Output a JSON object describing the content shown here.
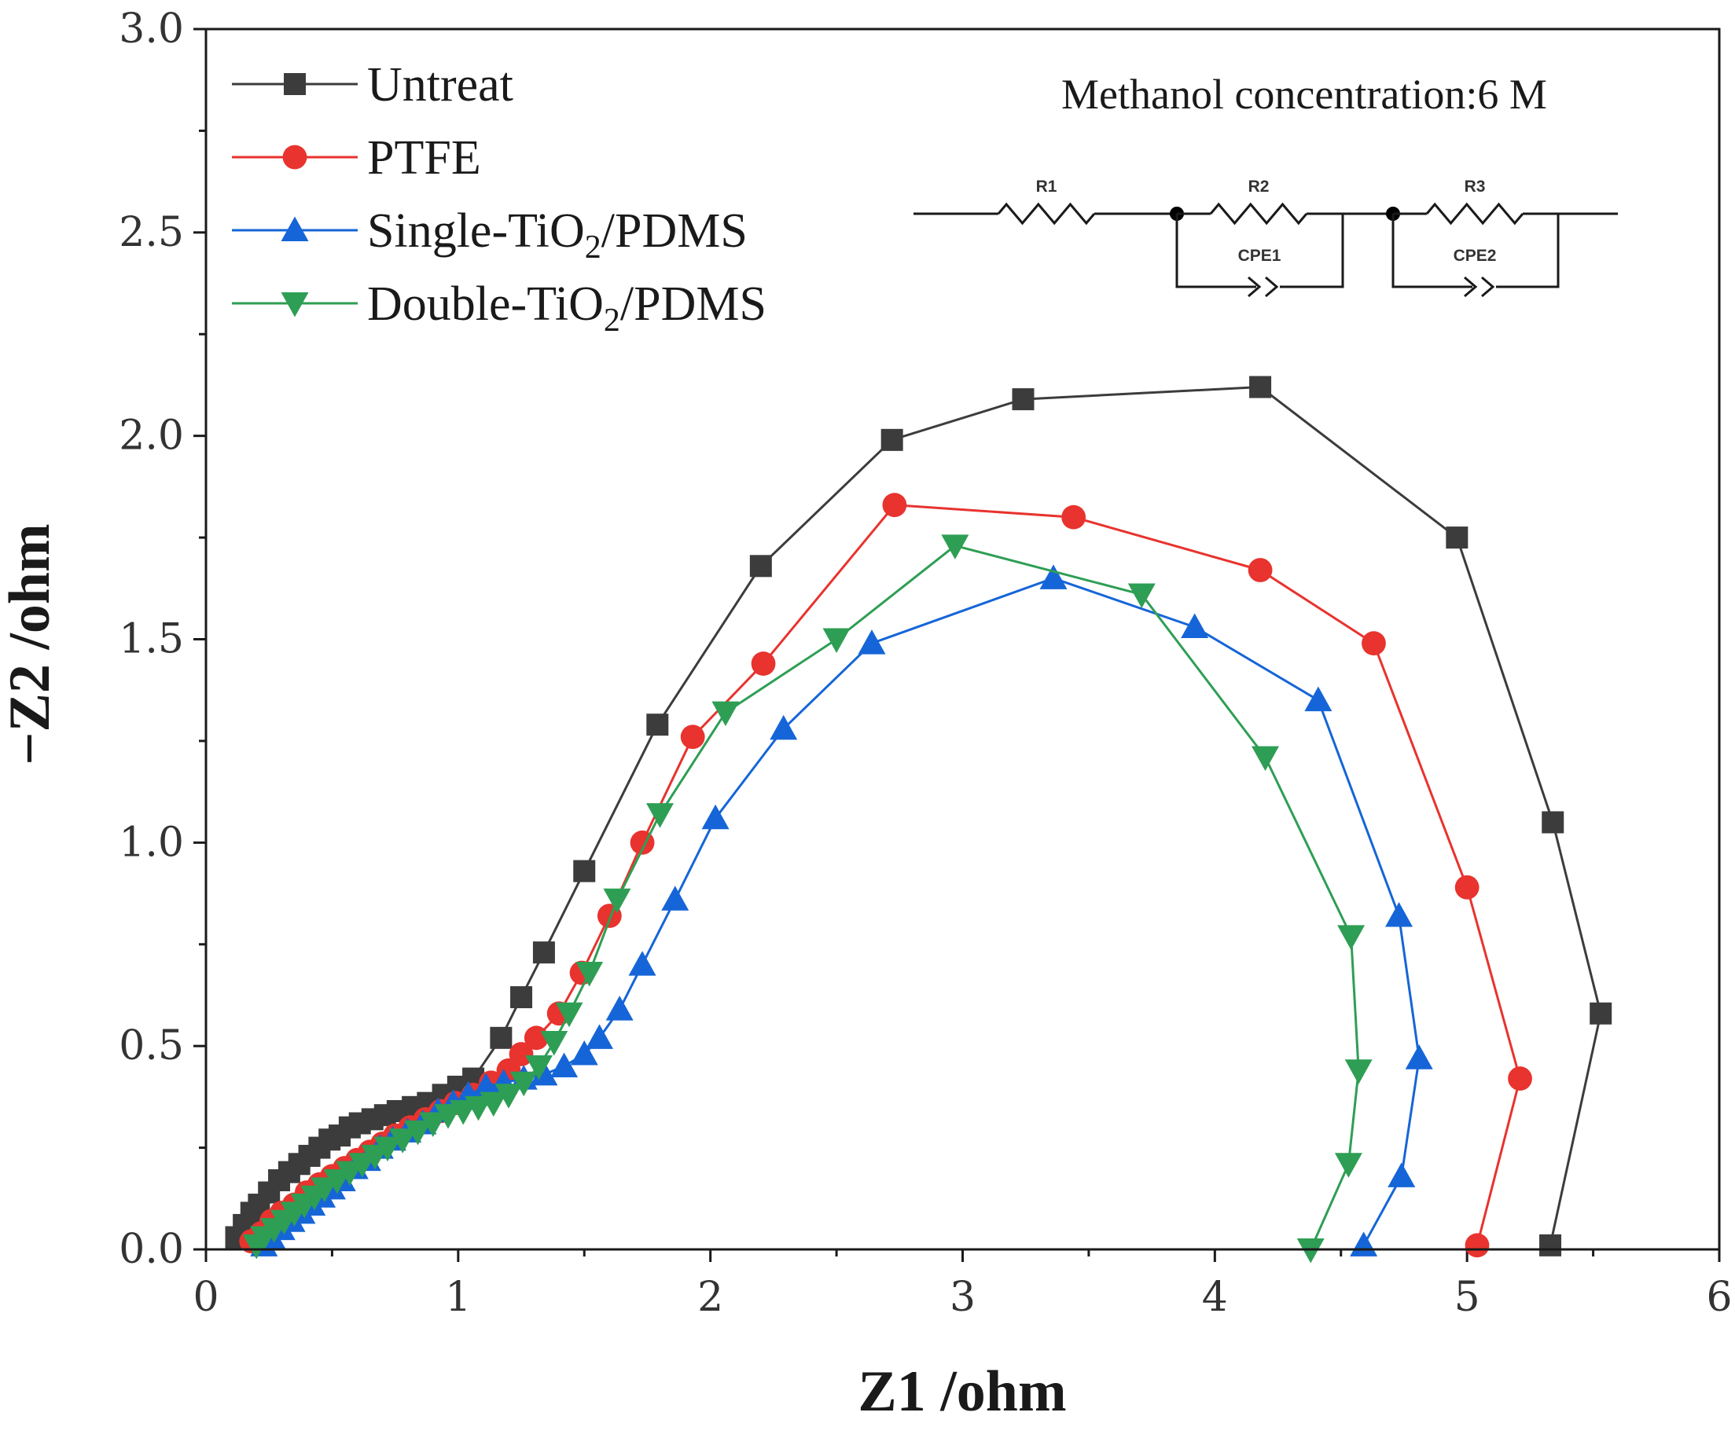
{
  "chart_data": {
    "type": "scatter",
    "mode": "lines+markers",
    "title": "",
    "xlabel": "Z1 /ohm",
    "ylabel": "−Z2 /ohm",
    "xlim": [
      0,
      6
    ],
    "ylim": [
      0,
      3.0
    ],
    "x_ticks": [
      "0",
      "1",
      "2",
      "3",
      "4",
      "5",
      "6"
    ],
    "y_ticks": [
      "0.0",
      "0.5",
      "1.0",
      "1.5",
      "2.0",
      "2.5",
      "3.0"
    ],
    "legend_position": "top-left",
    "annotation": "Methanol concentration:6 M",
    "circuit": {
      "resistors": [
        "R1",
        "R2",
        "R3"
      ],
      "cpes": [
        "CPE1",
        "CPE2"
      ]
    },
    "series": [
      {
        "name": "Untreat",
        "label_main": "Untreat",
        "label_sub": "",
        "label_tail": "",
        "color": "#3c3c3c",
        "marker": "square",
        "x": [
          0.12,
          0.15,
          0.18,
          0.21,
          0.25,
          0.29,
          0.33,
          0.37,
          0.41,
          0.45,
          0.49,
          0.53,
          0.57,
          0.61,
          0.66,
          0.71,
          0.76,
          0.82,
          0.88,
          0.94,
          1.0,
          1.06,
          1.17,
          1.25,
          1.34,
          1.5,
          1.79,
          2.2,
          2.72,
          3.24,
          4.18,
          4.96,
          5.34,
          5.53,
          5.33
        ],
        "y": [
          0.03,
          0.06,
          0.09,
          0.11,
          0.14,
          0.17,
          0.19,
          0.21,
          0.23,
          0.25,
          0.27,
          0.28,
          0.3,
          0.31,
          0.32,
          0.33,
          0.34,
          0.35,
          0.36,
          0.38,
          0.4,
          0.42,
          0.52,
          0.62,
          0.73,
          0.93,
          1.29,
          1.68,
          1.99,
          2.09,
          2.12,
          1.75,
          1.05,
          0.58,
          0.01
        ]
      },
      {
        "name": "PTFE",
        "label_main": "PTFE",
        "label_sub": "",
        "label_tail": "",
        "color": "#e8332e",
        "marker": "circle",
        "x": [
          0.18,
          0.22,
          0.26,
          0.3,
          0.35,
          0.4,
          0.45,
          0.5,
          0.55,
          0.6,
          0.65,
          0.7,
          0.75,
          0.81,
          0.87,
          0.93,
          0.99,
          1.06,
          1.13,
          1.2,
          1.25,
          1.31,
          1.4,
          1.49,
          1.6,
          1.73,
          1.93,
          2.21,
          2.73,
          3.44,
          4.18,
          4.63,
          5.0,
          5.21,
          5.04
        ],
        "y": [
          0.02,
          0.04,
          0.07,
          0.09,
          0.11,
          0.14,
          0.16,
          0.18,
          0.2,
          0.22,
          0.24,
          0.26,
          0.28,
          0.3,
          0.32,
          0.34,
          0.36,
          0.38,
          0.41,
          0.44,
          0.48,
          0.52,
          0.58,
          0.68,
          0.82,
          1.0,
          1.26,
          1.44,
          1.83,
          1.8,
          1.67,
          1.49,
          0.89,
          0.42,
          0.01
        ]
      },
      {
        "name": "Single-TiO2/PDMS",
        "label_main": "Single-TiO",
        "label_sub": "2",
        "label_tail": "/PDMS",
        "color": "#1565d8",
        "marker": "triangle-up",
        "x": [
          0.23,
          0.26,
          0.3,
          0.34,
          0.38,
          0.42,
          0.46,
          0.5,
          0.54,
          0.59,
          0.64,
          0.69,
          0.74,
          0.8,
          0.86,
          0.92,
          0.98,
          1.04,
          1.11,
          1.18,
          1.26,
          1.34,
          1.42,
          1.5,
          1.56,
          1.64,
          1.73,
          1.86,
          2.02,
          2.29,
          2.64,
          3.36,
          3.92,
          4.41,
          4.73,
          4.81,
          4.74,
          4.59
        ],
        "y": [
          0.01,
          0.03,
          0.05,
          0.07,
          0.09,
          0.11,
          0.13,
          0.15,
          0.17,
          0.2,
          0.22,
          0.25,
          0.27,
          0.29,
          0.31,
          0.34,
          0.36,
          0.38,
          0.4,
          0.41,
          0.42,
          0.43,
          0.45,
          0.48,
          0.52,
          0.59,
          0.7,
          0.86,
          1.06,
          1.28,
          1.49,
          1.65,
          1.53,
          1.35,
          0.82,
          0.47,
          0.18,
          0.01
        ]
      },
      {
        "name": "Double-TiO2/PDMS",
        "label_main": "Double-TiO",
        "label_sub": "2",
        "label_tail": "/PDMS",
        "color": "#2e9e54",
        "marker": "triangle-down",
        "x": [
          0.2,
          0.23,
          0.27,
          0.31,
          0.35,
          0.39,
          0.43,
          0.47,
          0.52,
          0.57,
          0.62,
          0.67,
          0.72,
          0.78,
          0.84,
          0.9,
          0.96,
          1.02,
          1.08,
          1.14,
          1.2,
          1.26,
          1.32,
          1.38,
          1.44,
          1.52,
          1.63,
          1.8,
          2.06,
          2.5,
          2.97,
          3.71,
          4.2,
          4.54,
          4.57,
          4.53,
          4.38
        ],
        "y": [
          0.01,
          0.03,
          0.05,
          0.07,
          0.09,
          0.11,
          0.13,
          0.15,
          0.17,
          0.19,
          0.21,
          0.23,
          0.25,
          0.27,
          0.29,
          0.31,
          0.33,
          0.34,
          0.35,
          0.36,
          0.38,
          0.41,
          0.45,
          0.51,
          0.58,
          0.68,
          0.86,
          1.07,
          1.32,
          1.5,
          1.73,
          1.61,
          1.21,
          0.77,
          0.44,
          0.21,
          0.0
        ]
      }
    ]
  }
}
